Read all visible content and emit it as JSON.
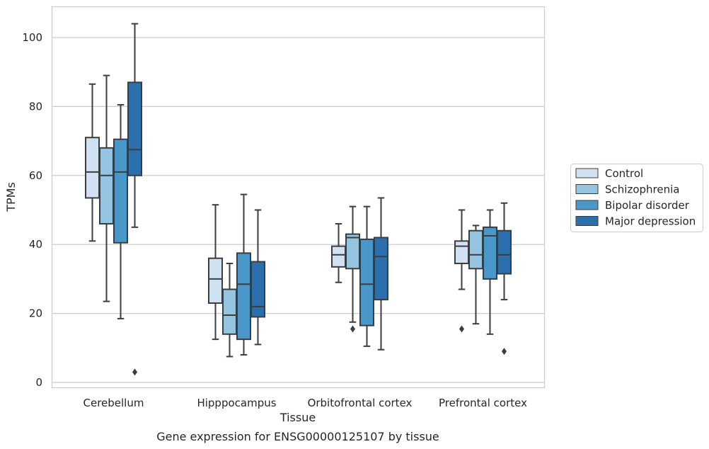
{
  "chart_data": {
    "type": "box",
    "title": "",
    "caption": "Gene expression for ENSG00000125107 by tissue",
    "xlabel": "Tissue",
    "ylabel": "TPMs",
    "ylim": [
      -1.5,
      109
    ],
    "yticks": [
      0,
      20,
      40,
      60,
      80,
      100
    ],
    "grid": "horizontal",
    "legend_position": "right",
    "categories": [
      "Cerebellum",
      "Hipppocampus",
      "Orbitofrontal cortex",
      "Prefrontal cortex"
    ],
    "series": [
      {
        "name": "Control",
        "color": "#d0e1f2",
        "boxes": [
          {
            "whisker_low": 41,
            "q1": 53.5,
            "median": 61,
            "q3": 71,
            "whisker_high": 86.5,
            "outliers": []
          },
          {
            "whisker_low": 12.5,
            "q1": 23,
            "median": 30,
            "q3": 36,
            "whisker_high": 51.5,
            "outliers": []
          },
          {
            "whisker_low": 29,
            "q1": 33.5,
            "median": 37,
            "q3": 39.5,
            "whisker_high": 46,
            "outliers": []
          },
          {
            "whisker_low": 27,
            "q1": 34.5,
            "median": 39.5,
            "q3": 41,
            "whisker_high": 50,
            "outliers": [
              15.5
            ]
          }
        ]
      },
      {
        "name": "Schizophrenia",
        "color": "#94c4df",
        "boxes": [
          {
            "whisker_low": 23.5,
            "q1": 46,
            "median": 60,
            "q3": 68,
            "whisker_high": 89,
            "outliers": []
          },
          {
            "whisker_low": 7.5,
            "q1": 14,
            "median": 19.5,
            "q3": 27,
            "whisker_high": 34.5,
            "outliers": []
          },
          {
            "whisker_low": 17.5,
            "q1": 33,
            "median": 42,
            "q3": 43,
            "whisker_high": 51,
            "outliers": [
              15.5
            ]
          },
          {
            "whisker_low": 17,
            "q1": 33,
            "median": 37,
            "q3": 44,
            "whisker_high": 45.5,
            "outliers": []
          }
        ]
      },
      {
        "name": "Bipolar disorder",
        "color": "#4a98c9",
        "boxes": [
          {
            "whisker_low": 18.5,
            "q1": 40.5,
            "median": 61,
            "q3": 70.5,
            "whisker_high": 80.5,
            "outliers": []
          },
          {
            "whisker_low": 8,
            "q1": 12.5,
            "median": 28.5,
            "q3": 37.5,
            "whisker_high": 54.5,
            "outliers": []
          },
          {
            "whisker_low": 10.5,
            "q1": 16.5,
            "median": 28.5,
            "q3": 41.5,
            "whisker_high": 51,
            "outliers": []
          },
          {
            "whisker_low": 14,
            "q1": 30,
            "median": 42.5,
            "q3": 45,
            "whisker_high": 50,
            "outliers": []
          }
        ]
      },
      {
        "name": "Major depression",
        "color": "#2b6fad",
        "boxes": [
          {
            "whisker_low": 45,
            "q1": 60,
            "median": 67.5,
            "q3": 87,
            "whisker_high": 104,
            "outliers": [
              3
            ]
          },
          {
            "whisker_low": 11,
            "q1": 19,
            "median": 22,
            "q3": 35,
            "whisker_high": 50,
            "outliers": []
          },
          {
            "whisker_low": 9.5,
            "q1": 24,
            "median": 36.5,
            "q3": 42,
            "whisker_high": 53.5,
            "outliers": []
          },
          {
            "whisker_low": 24,
            "q1": 31.5,
            "median": 37,
            "q3": 44,
            "whisker_high": 52,
            "outliers": [
              9
            ]
          }
        ]
      }
    ]
  }
}
